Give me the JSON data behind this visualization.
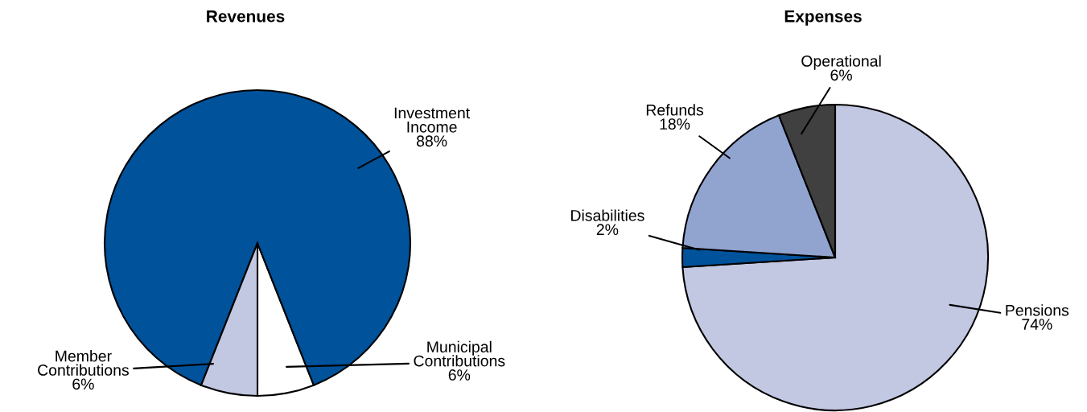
{
  "chart_data": [
    {
      "type": "pie",
      "title": "Revenues",
      "categories": [
        "Municipal Contributions",
        "Investment Income",
        "Member Contributions"
      ],
      "values": [
        6,
        88,
        6
      ],
      "value_labels": [
        "6%",
        "88%",
        "6%"
      ],
      "colors": [
        "#ffffff",
        "#00529b",
        "#c2c8e2"
      ]
    },
    {
      "type": "pie",
      "title": "Expenses",
      "categories": [
        "Pensions",
        "Disabilities",
        "Refunds",
        "Operational"
      ],
      "values": [
        74,
        2,
        18,
        6
      ],
      "value_labels": [
        "74%",
        "2%",
        "18%",
        "6%"
      ],
      "colors": [
        "#c2c8e2",
        "#00529b",
        "#91a3cf",
        "#404040"
      ]
    }
  ]
}
